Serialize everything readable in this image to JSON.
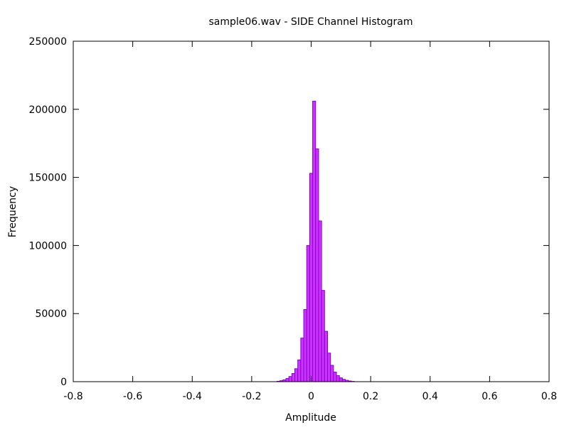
{
  "chart_data": {
    "type": "bar",
    "title": "sample06.wav - SIDE Channel Histogram",
    "xlabel": "Amplitude",
    "ylabel": "Frequency",
    "xlim": [
      -0.8,
      0.8
    ],
    "ylim": [
      0,
      250000
    ],
    "xticks": [
      "-0.8",
      "-0.6",
      "-0.4",
      "-0.2",
      "0",
      "0.2",
      "0.4",
      "0.6",
      "0.8"
    ],
    "yticks": [
      "0",
      "50000",
      "100000",
      "150000",
      "200000",
      "250000"
    ],
    "grid": false,
    "legend": "none",
    "bar_color": "#cc33ff",
    "bar_edge_color": "#8800cc",
    "bin_width": 0.01,
    "bins": [
      {
        "x": -0.11,
        "value": 300
      },
      {
        "x": -0.1,
        "value": 700
      },
      {
        "x": -0.09,
        "value": 1300
      },
      {
        "x": -0.08,
        "value": 2300
      },
      {
        "x": -0.07,
        "value": 3800
      },
      {
        "x": -0.06,
        "value": 6000
      },
      {
        "x": -0.05,
        "value": 9500
      },
      {
        "x": -0.04,
        "value": 16000
      },
      {
        "x": -0.03,
        "value": 32000
      },
      {
        "x": -0.02,
        "value": 53000
      },
      {
        "x": -0.01,
        "value": 100000
      },
      {
        "x": 0.0,
        "value": 153000
      },
      {
        "x": 0.01,
        "value": 206000
      },
      {
        "x": 0.02,
        "value": 171000
      },
      {
        "x": 0.03,
        "value": 118000
      },
      {
        "x": 0.04,
        "value": 67000
      },
      {
        "x": 0.05,
        "value": 37000
      },
      {
        "x": 0.06,
        "value": 21000
      },
      {
        "x": 0.07,
        "value": 12000
      },
      {
        "x": 0.08,
        "value": 7000
      },
      {
        "x": 0.09,
        "value": 4500
      },
      {
        "x": 0.1,
        "value": 2800
      },
      {
        "x": 0.11,
        "value": 1700
      },
      {
        "x": 0.12,
        "value": 1000
      },
      {
        "x": 0.13,
        "value": 500
      },
      {
        "x": 0.14,
        "value": 200
      }
    ]
  }
}
